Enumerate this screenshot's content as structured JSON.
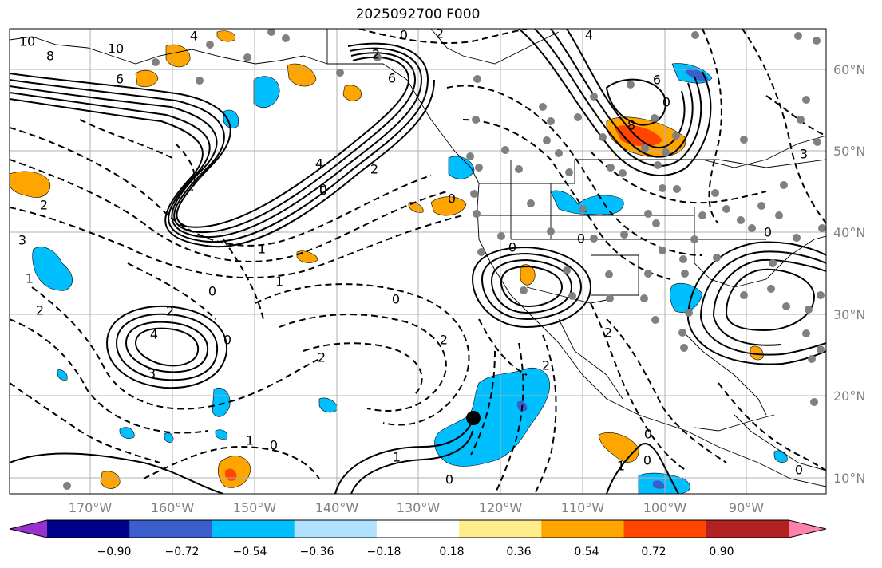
{
  "title": "2025092700 F000",
  "lat_labels": [
    "60°N",
    "50°N",
    "40°N",
    "30°N",
    "20°N",
    "10°N"
  ],
  "lon_labels": [
    "170°W",
    "160°W",
    "150°W",
    "140°W",
    "130°W",
    "120°W",
    "110°W",
    "100°W",
    "90°W"
  ],
  "colorbar": {
    "ticks": [
      "−0.90",
      "−0.72",
      "−0.54",
      "−0.36",
      "−0.18",
      "0.18",
      "0.36",
      "0.54",
      "0.72",
      "0.90"
    ],
    "colors": [
      "#9932cc",
      "#00008b",
      "#3a5fcd",
      "#00bfff",
      "#b0e2ff",
      "#ffffff",
      "#ffec8b",
      "#ffa500",
      "#ff4500",
      "#b22222",
      "#ff82ab"
    ]
  },
  "contour_labels": [
    "10",
    "8",
    "10",
    "6",
    "2",
    "6",
    "4",
    "0",
    "2",
    "4",
    "4",
    "6",
    "8",
    "2",
    "0",
    "1",
    "0",
    "2",
    "0",
    "1",
    "3",
    "2",
    "0",
    "0",
    "2",
    "4",
    "3",
    "2",
    "2",
    "1",
    "0",
    "2",
    "1",
    "0",
    "1",
    "0",
    "0",
    "0",
    "0",
    "0",
    "2",
    "3",
    "1",
    "0",
    "0",
    "0"
  ],
  "storm_marker": "hurricane-center"
}
